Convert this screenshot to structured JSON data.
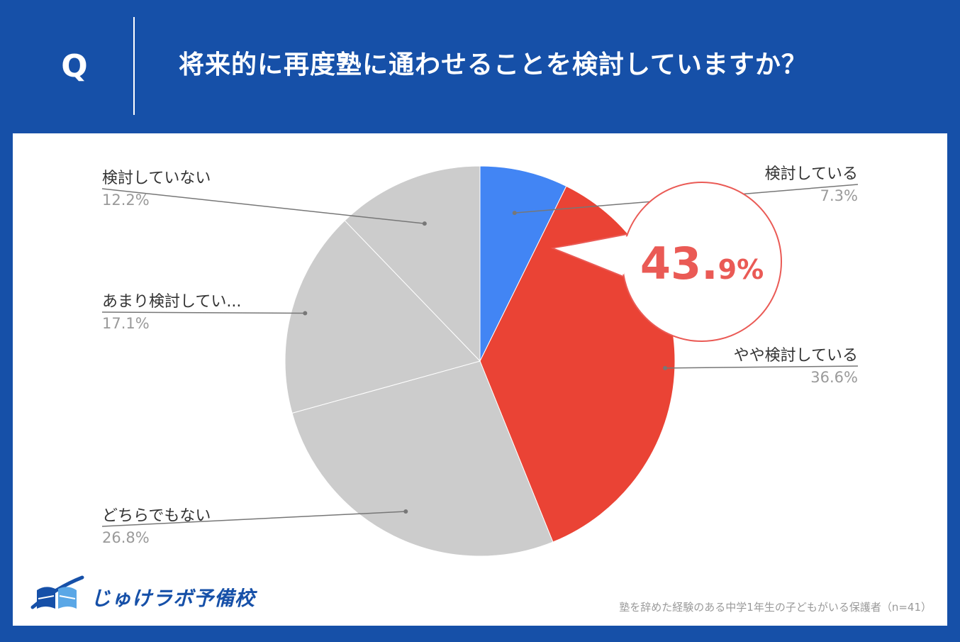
{
  "header": {
    "q_mark": "Q",
    "question": "将来的に再度塾に通わせることを検討していますか？"
  },
  "chart_data": {
    "type": "pie",
    "categories": [
      "検討している",
      "やや検討している",
      "どちらでもない",
      "あまり検討してい...",
      "検討していない"
    ],
    "values": [
      7.3,
      36.6,
      26.8,
      17.1,
      12.2
    ],
    "value_labels": [
      "7.3%",
      "36.6%",
      "26.8%",
      "17.1%",
      "12.2%"
    ],
    "colors": [
      "#4285f4",
      "#ea4335",
      "#cccccc",
      "#cccccc",
      "#cccccc"
    ],
    "highlight": {
      "number": "43.",
      "small": "9%",
      "color": "#ea5a55"
    }
  },
  "footnote": "塾を辞めた経験のある中学1年生の子どもがいる保護者（n=41）",
  "logo": {
    "text": "じゅけラボ予備校",
    "icon": "open-book-icon",
    "color": "#1650a8"
  }
}
